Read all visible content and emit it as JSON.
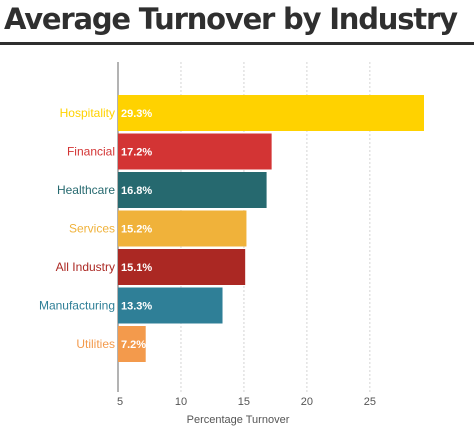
{
  "chart_data": {
    "type": "bar",
    "orientation": "horizontal",
    "title": "Average Turnover by Industry",
    "xlabel": "Percentage Turnover",
    "ylabel": "",
    "xlim": [
      5,
      29.3
    ],
    "xticks": [
      5,
      10,
      15,
      20,
      25
    ],
    "grid": "vertical dashed",
    "legend": "none",
    "categories": [
      "Hospitality",
      "Financial",
      "Healthcare",
      "Services",
      "All Industry",
      "Manufacturing",
      "Utilities"
    ],
    "values": [
      29.3,
      17.2,
      16.8,
      15.2,
      15.1,
      13.3,
      7.2
    ],
    "value_labels": [
      "29.3%",
      "17.2%",
      "16.8%",
      "15.2%",
      "15.1%",
      "13.3%",
      "7.2%"
    ],
    "colors": [
      "#ffd200",
      "#d33434",
      "#26696f",
      "#f0b23a",
      "#ab2823",
      "#2f7f97",
      "#f39a4c"
    ]
  }
}
